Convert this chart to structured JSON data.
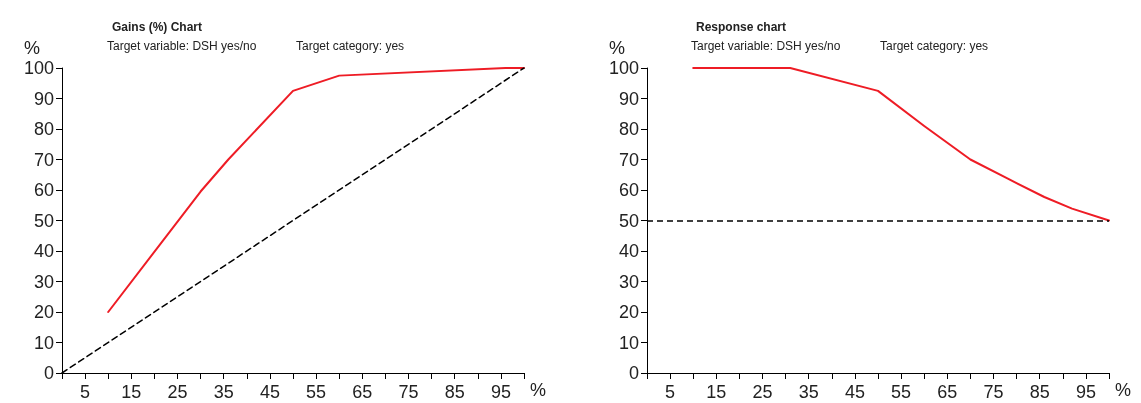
{
  "chart_data": [
    {
      "type": "line",
      "title": "Gains (%) Chart",
      "annotations": [
        "Target variable: DSH yes/no",
        "Target category: yes"
      ],
      "ylabel": "%",
      "xlabel": "%",
      "xlim": [
        0,
        100
      ],
      "xticks": [
        {
          "value": 0,
          "label": null
        },
        5,
        {
          "value": 10,
          "label": null
        },
        15,
        {
          "value": 20,
          "label": null
        },
        25,
        {
          "value": 30,
          "label": null
        },
        35,
        {
          "value": 40,
          "label": null
        },
        45,
        {
          "value": 50,
          "label": null
        },
        55,
        {
          "value": 60,
          "label": null
        },
        65,
        {
          "value": 70,
          "label": null
        },
        75,
        {
          "value": 80,
          "label": null
        },
        85,
        {
          "value": 90,
          "label": null
        },
        95,
        {
          "value": 100,
          "label": null
        }
      ],
      "ylim": [
        0,
        100
      ],
      "yticks": [
        0,
        10,
        20,
        30,
        40,
        50,
        60,
        70,
        80,
        90,
        100
      ],
      "marker": "none",
      "series": [
        {
          "color": "#ee1c25",
          "line_style": "solid",
          "x": [
            10,
            30,
            36,
            50,
            60,
            96,
            100
          ],
          "values": [
            20,
            59.5,
            70,
            92.5,
            97.5,
            100,
            100
          ]
        },
        {
          "color": "#000000",
          "line_style": "dashed",
          "x": [
            0,
            100
          ],
          "values": [
            0,
            100
          ]
        }
      ]
    },
    {
      "type": "line",
      "title": "Response chart",
      "annotations": [
        "Target variable: DSH yes/no",
        "Target category: yes"
      ],
      "ylabel": "%",
      "xlabel": "%",
      "xlim": [
        0,
        100
      ],
      "xticks": [
        {
          "value": 0,
          "label": null
        },
        5,
        {
          "value": 10,
          "label": null
        },
        15,
        {
          "value": 20,
          "label": null
        },
        25,
        {
          "value": 30,
          "label": null
        },
        35,
        {
          "value": 40,
          "label": null
        },
        45,
        {
          "value": 50,
          "label": null
        },
        55,
        {
          "value": 60,
          "label": null
        },
        65,
        {
          "value": 70,
          "label": null
        },
        75,
        {
          "value": 80,
          "label": null
        },
        85,
        {
          "value": 90,
          "label": null
        },
        95,
        {
          "value": 100,
          "label": null
        }
      ],
      "ylim": [
        0,
        100
      ],
      "yticks": [
        0,
        10,
        20,
        30,
        40,
        50,
        60,
        70,
        80,
        90,
        100
      ],
      "marker": "none",
      "ref_lines": [
        {
          "axis": "y",
          "value": 50,
          "color": "#000000",
          "line_style": "dashed"
        }
      ],
      "series": [
        {
          "color": "#ee1c25",
          "line_style": "solid",
          "x": [
            10,
            31,
            50,
            60,
            70,
            78,
            86,
            92,
            100
          ],
          "values": [
            100,
            100,
            92.5,
            81,
            70,
            63.8,
            57.7,
            53.9,
            50
          ]
        }
      ]
    }
  ]
}
